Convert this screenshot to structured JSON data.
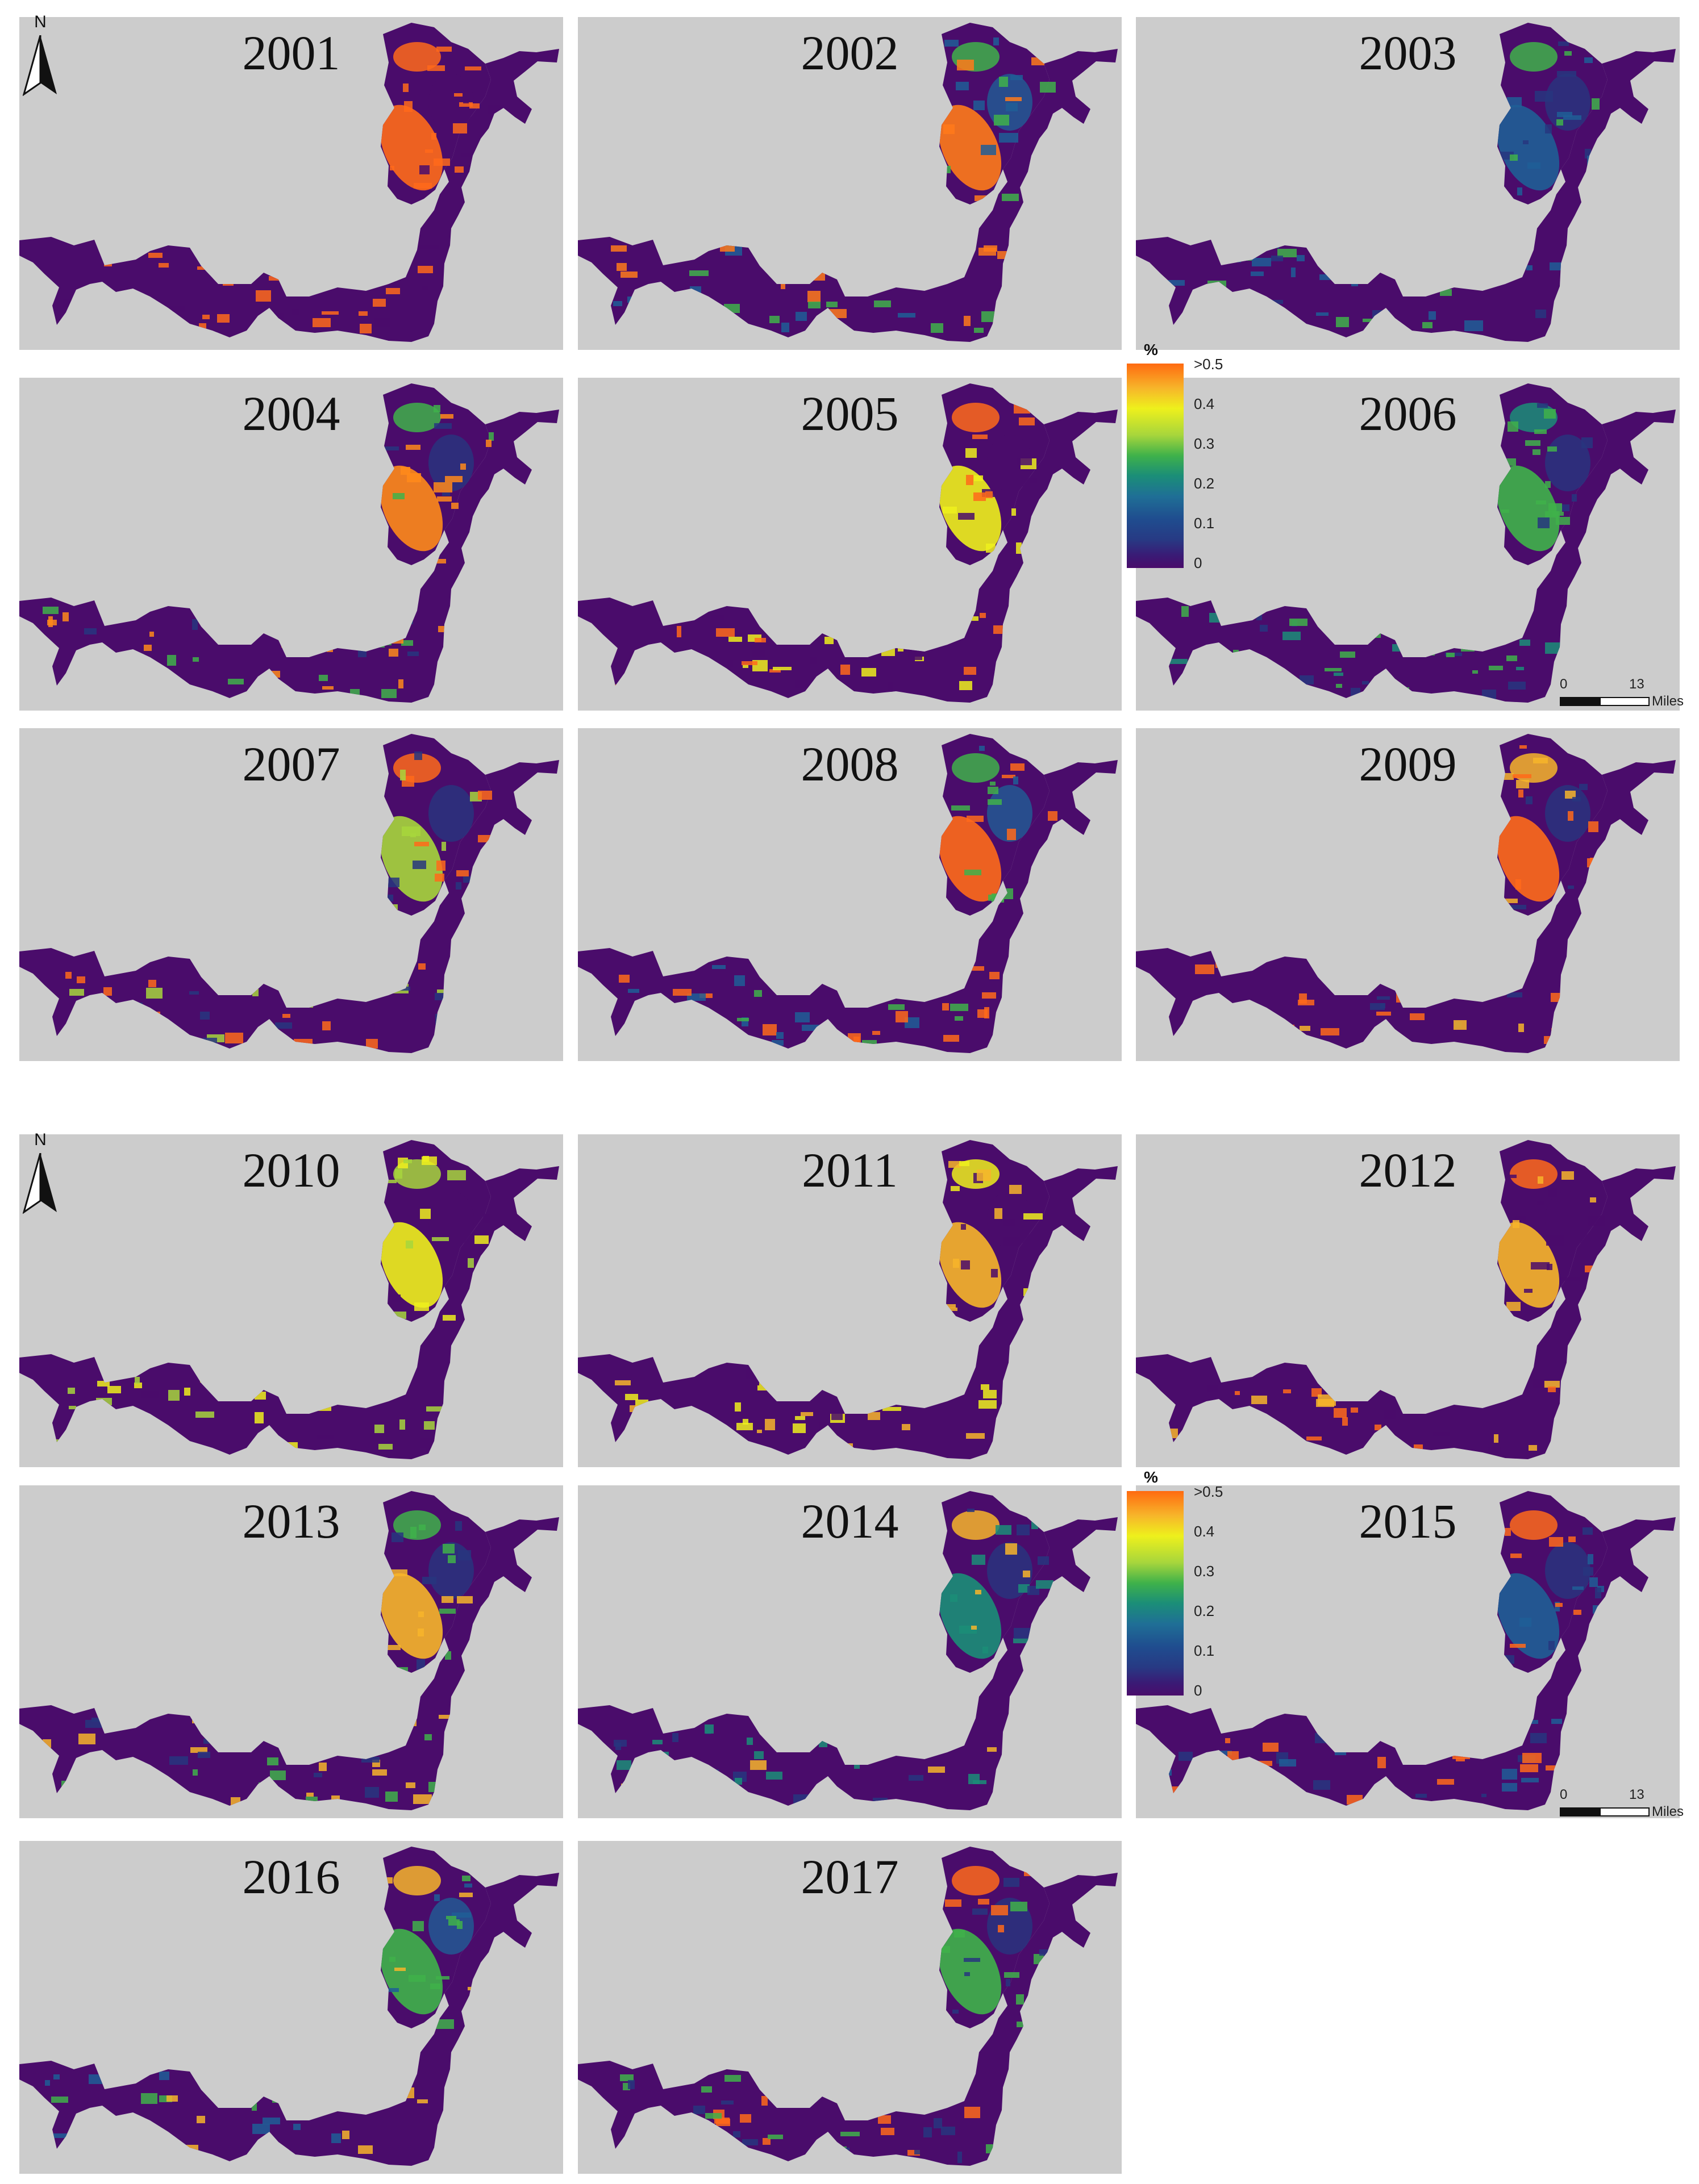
{
  "figure": {
    "years": [
      "2001",
      "2002",
      "2003",
      "2004",
      "2005",
      "2006",
      "2007",
      "2008",
      "2009",
      "2010",
      "2011",
      "2012",
      "2013",
      "2014",
      "2015",
      "2016",
      "2017"
    ],
    "panel_colors": {
      "2001": {
        "a": "#ff6a1a",
        "b": "#ff6a1a",
        "c": "#4a0c6b"
      },
      "2002": {
        "a": "#ff7a1a",
        "b": "#3fb24a",
        "c": "#1f5e96"
      },
      "2003": {
        "a": "#1f5e96",
        "b": "#3fb24a",
        "c": "#27367f"
      },
      "2004": {
        "a": "#ff8a1a",
        "b": "#3fb24a",
        "c": "#27367f"
      },
      "2005": {
        "a": "#eef01c",
        "b": "#ff6a1a",
        "c": "#4a0c6b"
      },
      "2006": {
        "a": "#3fb24a",
        "b": "#1b8e78",
        "c": "#27367f"
      },
      "2007": {
        "a": "#a7d63c",
        "b": "#ff6a1a",
        "c": "#27367f"
      },
      "2008": {
        "a": "#ff6a1a",
        "b": "#3fb24a",
        "c": "#1f5e96"
      },
      "2009": {
        "a": "#ff6a1a",
        "b": "#f7b52a",
        "c": "#27367f"
      },
      "2010": {
        "a": "#eef01c",
        "b": "#a7d63c",
        "c": "#4a0c6b"
      },
      "2011": {
        "a": "#f7b52a",
        "b": "#eef01c",
        "c": "#4a0c6b"
      },
      "2012": {
        "a": "#f7b52a",
        "b": "#ff6a1a",
        "c": "#4a0c6b"
      },
      "2013": {
        "a": "#f7b52a",
        "b": "#3fb24a",
        "c": "#27367f"
      },
      "2014": {
        "a": "#1b8e78",
        "b": "#f7b52a",
        "c": "#27367f"
      },
      "2015": {
        "a": "#1f5e96",
        "b": "#ff6a1a",
        "c": "#27367f"
      },
      "2016": {
        "a": "#3fb24a",
        "b": "#f7b52a",
        "c": "#1f5e96"
      },
      "2017": {
        "a": "#3fb24a",
        "b": "#ff6a1a",
        "c": "#27367f"
      }
    },
    "north_label": "N",
    "legend": {
      "unit": "%",
      "ticks": [
        ">0.5",
        "0.4",
        "0.3",
        "0.2",
        "0.1",
        "0"
      ],
      "colors": [
        "#ff6a10",
        "#eef01c",
        "#3fb24a",
        "#1f6f96",
        "#273a84",
        "#4a0c6b"
      ]
    },
    "scale": {
      "start": "0",
      "end": "13",
      "unit": "Miles"
    },
    "background_color": "#cccccc",
    "land_color": "#4a0c6b"
  }
}
